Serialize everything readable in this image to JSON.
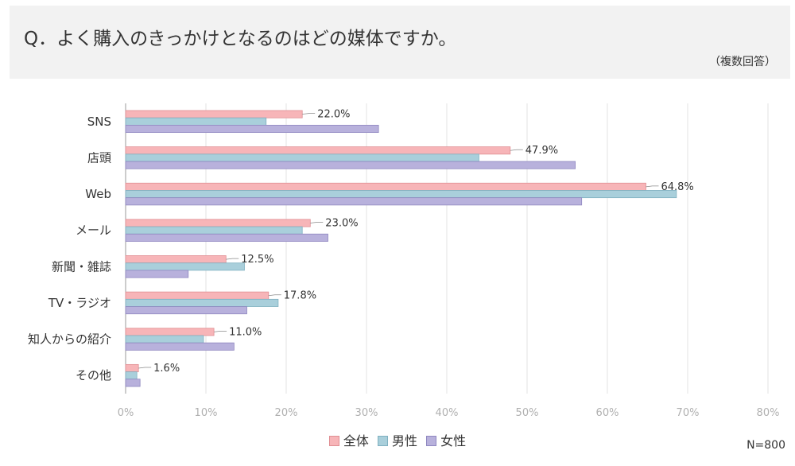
{
  "header": {
    "question": "Q．よく購入のきっかけとなるのはどの媒体ですか。",
    "note": "（複数回答）"
  },
  "chart_data": {
    "type": "bar",
    "orientation": "horizontal",
    "categories": [
      "SNS",
      "店頭",
      "Web",
      "メール",
      "新聞・雑誌",
      "TV・ラジオ",
      "知人からの紹介",
      "その他"
    ],
    "series": [
      {
        "name": "全体",
        "color": "#f7b5b8",
        "stroke": "#e08e93",
        "values": [
          22.0,
          47.9,
          64.8,
          23.0,
          12.5,
          17.8,
          11.0,
          1.6
        ]
      },
      {
        "name": "男性",
        "color": "#a9cfdb",
        "stroke": "#7fb0c0",
        "values": [
          17.5,
          44.0,
          68.6,
          22.0,
          14.8,
          19.0,
          9.7,
          1.4
        ]
      },
      {
        "name": "女性",
        "color": "#b8b1dc",
        "stroke": "#8f87c0",
        "values": [
          31.5,
          56.0,
          56.8,
          25.2,
          7.8,
          15.1,
          13.5,
          1.8
        ]
      }
    ],
    "data_labels": [
      "22.0%",
      "47.9%",
      "64.8%",
      "23.0%",
      "12.5%",
      "17.8%",
      "11.0%",
      "1.6%"
    ],
    "x_ticks": [
      "0%",
      "10%",
      "20%",
      "30%",
      "40%",
      "50%",
      "60%",
      "70%",
      "80%"
    ],
    "xlim": [
      0,
      80
    ],
    "legend_position": "bottom",
    "grid": true
  },
  "footer": {
    "sample_size": "N=800"
  }
}
